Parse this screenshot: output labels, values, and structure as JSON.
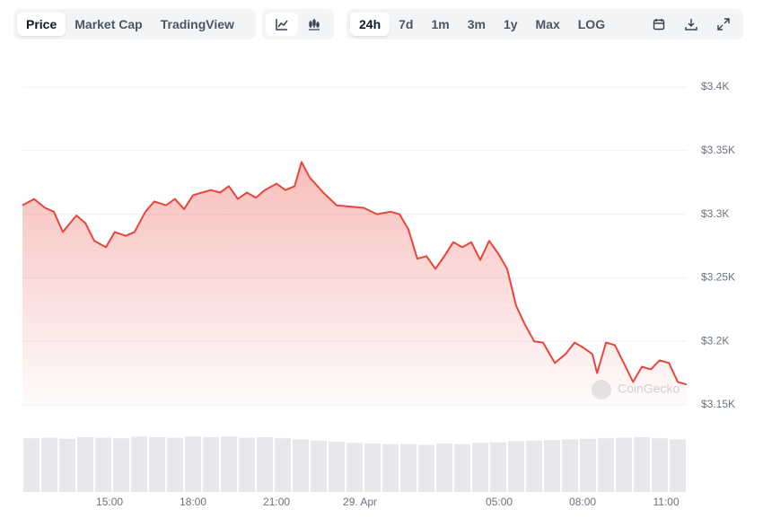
{
  "toolbar": {
    "views": [
      "Price",
      "Market Cap",
      "TradingView"
    ],
    "ranges": [
      "24h",
      "7d",
      "1m",
      "3m",
      "1y",
      "Max",
      "LOG"
    ]
  },
  "chart_data": {
    "type": "area",
    "watermark": "CoinGecko",
    "x": [
      11.87,
      12.29,
      12.68,
      13.0,
      13.32,
      13.81,
      14.13,
      14.45,
      14.87,
      15.19,
      15.58,
      15.9,
      16.29,
      16.61,
      17.03,
      17.35,
      17.68,
      18.0,
      18.32,
      18.64,
      18.97,
      19.29,
      19.61,
      19.94,
      20.26,
      20.58,
      21.0,
      21.32,
      21.65,
      21.9,
      22.19,
      22.68,
      23.16,
      23.64,
      24.13,
      24.61,
      25.1,
      25.42,
      25.74,
      26.06,
      26.39,
      26.71,
      27.03,
      27.35,
      27.68,
      28.0,
      28.32,
      28.64,
      28.97,
      29.29,
      29.61,
      29.93,
      30.26,
      30.58,
      31.0,
      31.39,
      31.71,
      32.03,
      32.35,
      32.52,
      32.84,
      33.16,
      33.48,
      33.81,
      34.13,
      34.45,
      34.77,
      35.1,
      35.42,
      35.74
    ],
    "series": [
      {
        "name": "Price",
        "color": "#e8453c",
        "values": [
          3307,
          3312,
          3305,
          3302,
          3286,
          3299,
          3293,
          3279,
          3274,
          3286,
          3283,
          3286,
          3302,
          3310,
          3307,
          3312,
          3304,
          3315,
          3317,
          3319,
          3317,
          3322,
          3312,
          3317,
          3313,
          3319,
          3324,
          3319,
          3322,
          3341,
          3329,
          3317,
          3307,
          3306,
          3305,
          3300,
          3302,
          3300,
          3288,
          3265,
          3267,
          3257,
          3267,
          3278,
          3274,
          3278,
          3264,
          3279,
          3269,
          3257,
          3228,
          3213,
          3200,
          3199,
          3183,
          3190,
          3199,
          3195,
          3190,
          3175,
          3199,
          3197,
          3183,
          3168,
          3180,
          3178,
          3185,
          3183,
          3168,
          3166
        ]
      }
    ],
    "volume": {
      "color": "#e5e7eb",
      "ylim": [
        0,
        100
      ],
      "values": [
        92,
        93,
        91,
        94,
        93,
        92,
        95,
        94,
        93,
        95,
        94,
        95,
        93,
        94,
        92,
        90,
        88,
        86,
        84,
        83,
        82,
        82,
        81,
        83,
        82,
        84,
        85,
        87,
        88,
        89,
        90,
        91,
        92,
        93,
        94,
        92,
        90
      ]
    },
    "xlim": [
      11.87,
      35.74
    ],
    "xticks": [
      {
        "value": 15,
        "label": "15:00"
      },
      {
        "value": 18,
        "label": "18:00"
      },
      {
        "value": 21,
        "label": "21:00"
      },
      {
        "value": 24,
        "label": "29. Apr"
      },
      {
        "value": 29,
        "label": "05:00"
      },
      {
        "value": 32,
        "label": "08:00"
      },
      {
        "value": 35,
        "label": "11:00"
      }
    ],
    "ylim": [
      3150,
      3400
    ],
    "yticks": [
      {
        "value": 3150,
        "label": "$3.15K"
      },
      {
        "value": 3200,
        "label": "$3.2K"
      },
      {
        "value": 3250,
        "label": "$3.25K"
      },
      {
        "value": 3300,
        "label": "$3.3K"
      },
      {
        "value": 3350,
        "label": "$3.35K"
      },
      {
        "value": 3400,
        "label": "$3.4K"
      }
    ],
    "grid": true
  }
}
